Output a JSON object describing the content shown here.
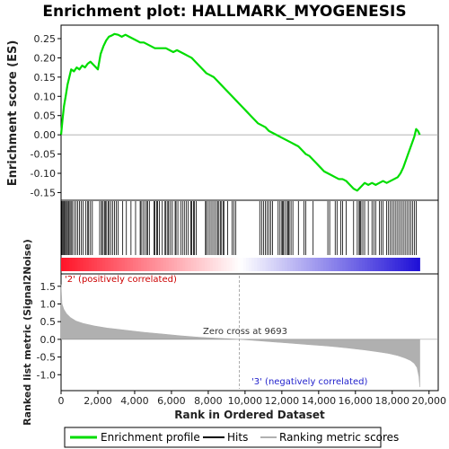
{
  "chart_data": {
    "type": "line",
    "title": "Enrichment plot: HALLMARK_MYOGENESIS",
    "panels": {
      "enrichment": {
        "ylabel": "Enrichment score (ES)",
        "ylim": [
          -0.17,
          0.285
        ],
        "yticks": [
          -0.15,
          -0.1,
          -0.05,
          0.0,
          0.05,
          0.1,
          0.15,
          0.2,
          0.25
        ],
        "ytick_labels": [
          "-0.15",
          "-0.10",
          "-0.05",
          "0.00",
          "0.05",
          "0.10",
          "0.15",
          "0.20",
          "0.25"
        ],
        "series": [
          {
            "name": "Enrichment profile",
            "color": "#00dd00",
            "x": [
              0,
              80,
              160,
              250,
              350,
              450,
              550,
              700,
              850,
              1000,
              1150,
              1300,
              1450,
              1600,
              1800,
              2000,
              2150,
              2300,
              2450,
              2600,
              2750,
              2900,
              3100,
              3300,
              3500,
              3700,
              3900,
              4100,
              4300,
              4500,
              4700,
              4900,
              5100,
              5300,
              5500,
              5700,
              5900,
              6100,
              6300,
              6500,
              6700,
              6900,
              7100,
              7300,
              7500,
              7700,
              7900,
              8100,
              8300,
              8500,
              8700,
              8900,
              9100,
              9300,
              9500,
              9700,
              9900,
              10100,
              10300,
              10500,
              10700,
              10900,
              11100,
              11300,
              11500,
              11700,
              11900,
              12100,
              12300,
              12500,
              12700,
              12900,
              13100,
              13300,
              13500,
              13700,
              13900,
              14100,
              14300,
              14500,
              14700,
              14900,
              15100,
              15300,
              15500,
              15700,
              15900,
              16100,
              16300,
              16500,
              16700,
              16900,
              17100,
              17300,
              17500,
              17700,
              17900,
              18100,
              18300,
              18450,
              18600,
              18750,
              18900,
              19050,
              19200,
              19300,
              19400,
              19500
            ],
            "y": [
              0.0,
              0.04,
              0.075,
              0.1,
              0.13,
              0.15,
              0.17,
              0.165,
              0.175,
              0.17,
              0.18,
              0.175,
              0.185,
              0.19,
              0.18,
              0.17,
              0.21,
              0.23,
              0.245,
              0.255,
              0.258,
              0.262,
              0.26,
              0.255,
              0.26,
              0.255,
              0.25,
              0.245,
              0.24,
              0.24,
              0.235,
              0.23,
              0.225,
              0.225,
              0.225,
              0.225,
              0.22,
              0.215,
              0.22,
              0.215,
              0.21,
              0.205,
              0.2,
              0.19,
              0.18,
              0.17,
              0.16,
              0.155,
              0.15,
              0.14,
              0.13,
              0.12,
              0.11,
              0.1,
              0.09,
              0.08,
              0.07,
              0.06,
              0.05,
              0.04,
              0.03,
              0.025,
              0.02,
              0.01,
              0.005,
              0.0,
              -0.005,
              -0.01,
              -0.015,
              -0.02,
              -0.025,
              -0.03,
              -0.04,
              -0.05,
              -0.055,
              -0.065,
              -0.075,
              -0.085,
              -0.095,
              -0.1,
              -0.105,
              -0.11,
              -0.115,
              -0.115,
              -0.12,
              -0.13,
              -0.14,
              -0.145,
              -0.135,
              -0.125,
              -0.13,
              -0.125,
              -0.13,
              -0.125,
              -0.12,
              -0.125,
              -0.12,
              -0.115,
              -0.11,
              -0.1,
              -0.085,
              -0.065,
              -0.045,
              -0.025,
              -0.005,
              0.015,
              0.01,
              0.0
            ]
          }
        ]
      },
      "hits": {
        "positions": [
          40,
          90,
          140,
          190,
          240,
          300,
          350,
          420,
          480,
          540,
          600,
          700,
          800,
          900,
          1000,
          1100,
          1200,
          1350,
          1450,
          1500,
          1600,
          1700,
          2100,
          2200,
          2250,
          2350,
          2400,
          2450,
          2550,
          2600,
          2700,
          2800,
          2900,
          3000,
          3100,
          3350,
          3550,
          3800,
          4050,
          4300,
          4350,
          4450,
          4550,
          4650,
          4700,
          4800,
          5050,
          5100,
          5200,
          5250,
          5350,
          5500,
          5650,
          5700,
          5800,
          5850,
          5950,
          6050,
          6200,
          6250,
          6350,
          6500,
          6600,
          6700,
          6800,
          6900,
          7050,
          7100,
          7200,
          7250,
          7350,
          7850,
          7900,
          8000,
          8100,
          8200,
          8300,
          8400,
          8500,
          8550,
          8650,
          8700,
          8800,
          8850,
          9050,
          9300,
          9400,
          9500,
          10800,
          10900,
          11000,
          11100,
          11200,
          11300,
          11400,
          11500,
          11800,
          11900,
          12000,
          12050,
          12100,
          12200,
          12300,
          12350,
          12400,
          12500,
          12600,
          12900,
          13200,
          13300,
          13700,
          14500,
          14600,
          14900,
          15000,
          15200,
          15300,
          15500,
          15900,
          16100,
          16200,
          16250,
          16300,
          16400,
          16500,
          16700,
          16900,
          17000,
          17100,
          17300,
          17400,
          17500,
          17700,
          17800,
          17900,
          18000,
          18100,
          18200,
          18300,
          18400,
          18500,
          18600,
          18700,
          18800,
          18900,
          19000,
          19100,
          19200,
          19300
        ]
      },
      "metric": {
        "ylabel": "Ranked list metric (Signal2Noise)",
        "ylim": [
          -1.45,
          1.85
        ],
        "yticks": [
          -1.0,
          -0.5,
          0.0,
          0.5,
          1.0,
          1.5
        ],
        "ytick_labels": [
          "-1.0",
          "-0.5",
          "0.0",
          "0.5",
          "1.0",
          "1.5"
        ],
        "x": [
          0,
          50,
          150,
          300,
          500,
          800,
          1200,
          1800,
          2500,
          3500,
          4500,
          5500,
          6500,
          7500,
          8500,
          9693,
          10500,
          11500,
          12500,
          13500,
          14500,
          15500,
          16500,
          17200,
          17800,
          18300,
          18700,
          19000,
          19200,
          19350,
          19450,
          19500
        ],
        "y": [
          1.55,
          1.0,
          0.85,
          0.72,
          0.62,
          0.52,
          0.45,
          0.38,
          0.32,
          0.26,
          0.2,
          0.15,
          0.1,
          0.06,
          0.03,
          0.0,
          -0.03,
          -0.07,
          -0.11,
          -0.15,
          -0.19,
          -0.24,
          -0.3,
          -0.35,
          -0.4,
          -0.46,
          -0.53,
          -0.6,
          -0.68,
          -0.8,
          -1.05,
          -1.35
        ],
        "color": "#b0b0b0",
        "zero_cross_label": "Zero cross at 9693",
        "zero_cross_x": 9693,
        "pos_label": "'2' (positively correlated)",
        "neg_label": "'3' (negatively correlated)",
        "pos_color": "#cc0000",
        "neg_color": "#2222cc"
      }
    },
    "xlabel": "Rank in Ordered Dataset",
    "xlim": [
      0,
      20500
    ],
    "xticks": [
      0,
      2000,
      4000,
      6000,
      8000,
      10000,
      12000,
      14000,
      16000,
      18000,
      20000
    ],
    "xtick_labels": [
      "0",
      "2,000",
      "4,000",
      "6,000",
      "8,000",
      "10,000",
      "12,000",
      "14,000",
      "16,000",
      "18,000",
      "20,000"
    ],
    "n_genes": 19500,
    "legend": {
      "placement": "bottom",
      "entries": [
        {
          "label": "Enrichment profile",
          "color": "#00dd00"
        },
        {
          "label": "Hits",
          "color": "#000000"
        },
        {
          "label": "Ranking metric scores",
          "color": "#b0b0b0"
        }
      ]
    }
  }
}
